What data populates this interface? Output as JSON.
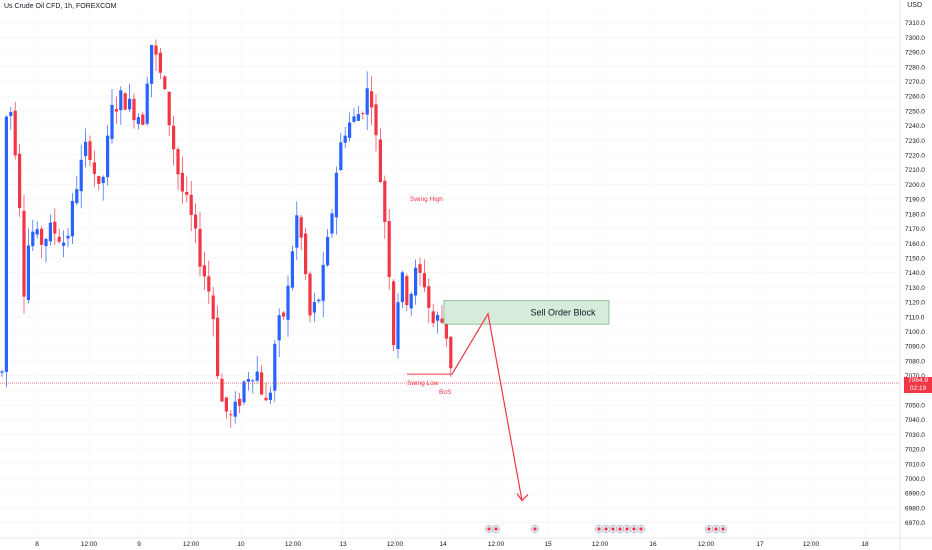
{
  "header": {
    "title": "Us Crude Oil CFD, 1h, FOREXCOM",
    "unit": "USD"
  },
  "current_price": {
    "value": "7064.9",
    "countdown": "02:19",
    "color": "#f23645"
  },
  "colors": {
    "up": "#2962ff",
    "down": "#f23645",
    "zone_fill": "#cfe8d4",
    "zone_stroke": "#5aa469",
    "annotation": "#f23645"
  },
  "chart_data": {
    "type": "candlestick",
    "title": "Us Crude Oil CFD, 1h, FOREXCOM",
    "ylim": [
      6965,
      7320
    ],
    "y_ticks": [
      7310,
      7300,
      7290,
      7280,
      7270,
      7260,
      7250,
      7240,
      7230,
      7220,
      7210,
      7200,
      7190,
      7180,
      7170,
      7160,
      7150,
      7140,
      7130,
      7120,
      7110,
      7100,
      7090,
      7080,
      7070,
      7060,
      7050,
      7040,
      7030,
      7020,
      7010,
      7000,
      6990,
      6980,
      6970
    ],
    "x_ticks": [
      "8",
      "12:00",
      "9",
      "12:00",
      "10",
      "12:00",
      "13",
      "12:00",
      "14",
      "12:00",
      "15",
      "12:00",
      "16",
      "12:00",
      "17",
      "12:00",
      "18"
    ],
    "annotations": {
      "swing_high": "Swing High",
      "swing_low": "Swing Low",
      "bos": "BoS",
      "order_block": "Sell Order Block"
    },
    "order_block_range": [
      7105,
      7121
    ],
    "swing_high_price": 7186,
    "swing_low_price": 7071,
    "projection": [
      7071,
      7112,
      6985
    ]
  }
}
